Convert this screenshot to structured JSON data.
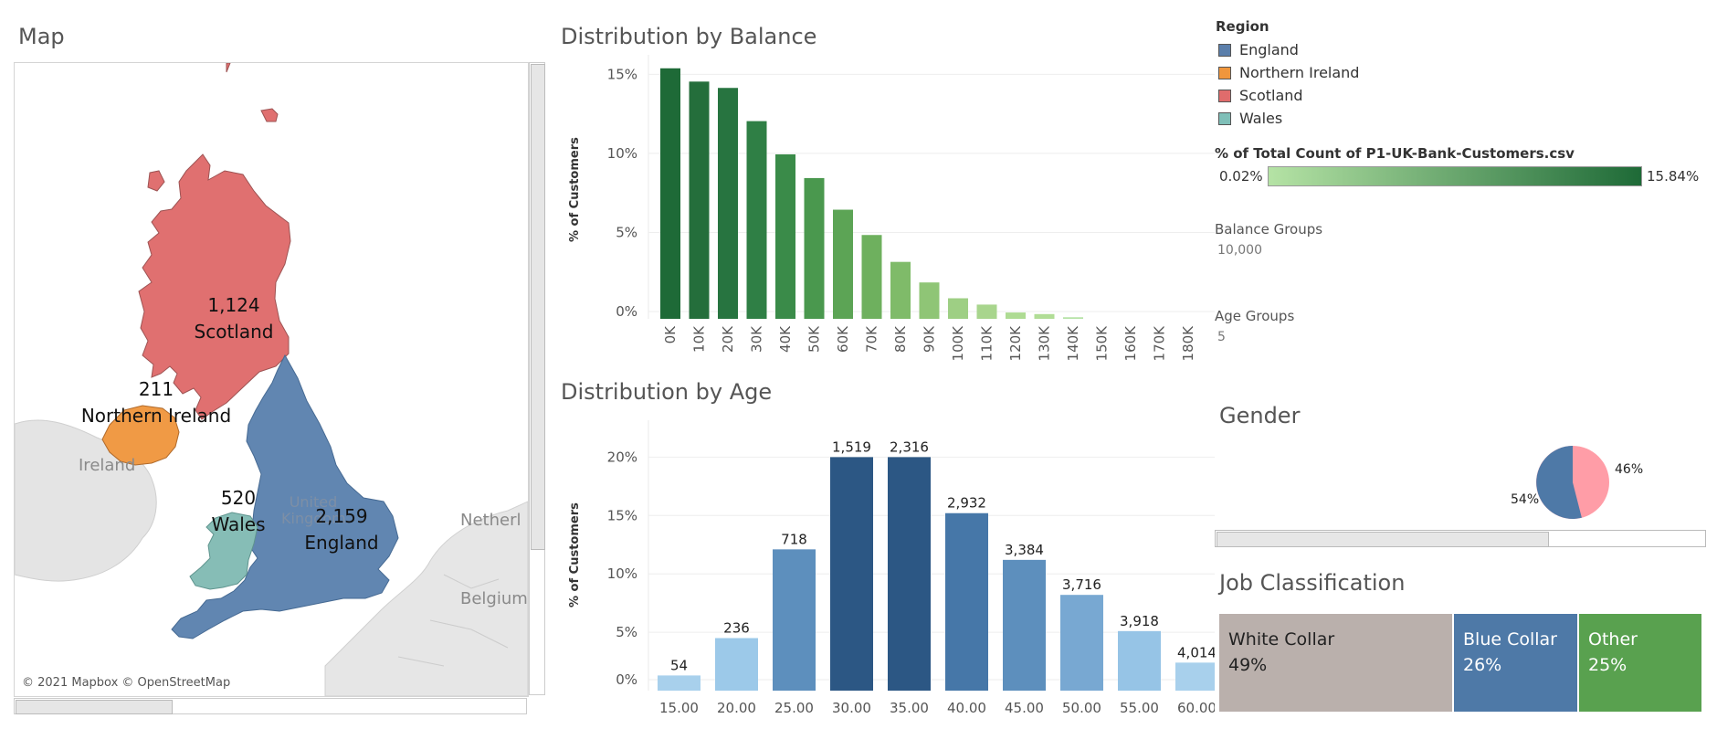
{
  "map": {
    "title": "Map",
    "attribution": "© 2021 Mapbox © OpenStreetMap",
    "countries": {
      "ireland": "Ireland",
      "uk": "United Kingdom",
      "netherlands": "Netherl",
      "belgium": "Belgium"
    },
    "regions": [
      {
        "name": "Scotland",
        "count": "1,124",
        "color": "#e07070"
      },
      {
        "name": "Northern Ireland",
        "count": "211",
        "color": "#f09a45"
      },
      {
        "name": "Wales",
        "count": "520",
        "color": "#86bdb6"
      },
      {
        "name": "England",
        "count": "2,159",
        "color": "#6186b1"
      }
    ]
  },
  "balance": {
    "title": "Distribution by Balance",
    "ylabel": "% of Customers"
  },
  "age": {
    "title": "Distribution by Age",
    "ylabel": "% of Customers"
  },
  "legend": {
    "region_title": "Region",
    "regions": [
      {
        "name": "England",
        "color": "#5b7fab"
      },
      {
        "name": "Northern Ireland",
        "color": "#f0963c"
      },
      {
        "name": "Scotland",
        "color": "#e06c6c"
      },
      {
        "name": "Wales",
        "color": "#7fbfb8"
      }
    ],
    "gradient_title": "% of Total Count of P1-UK-Bank-Customers.csv",
    "gradient_min": "0.02%",
    "gradient_max": "15.84%",
    "gradient_colors": [
      "#b5e3a5",
      "#1e6a37"
    ]
  },
  "params": {
    "balance_groups_label": "Balance Groups",
    "balance_groups_value": "10,000",
    "age_groups_label": "Age Groups",
    "age_groups_value": "5"
  },
  "gender": {
    "title": "Gender",
    "left_pct": "54%",
    "right_pct": "46%",
    "left_color": "#4e79a7",
    "right_color": "#ff9da7"
  },
  "job": {
    "title": "Job Classification",
    "items": [
      {
        "label": "White Collar",
        "pct": "49%",
        "color": "#bab0ac",
        "text_color": "#222222"
      },
      {
        "label": "Blue Collar",
        "pct": "26%",
        "color": "#4e79a7",
        "text_color": "#ffffff"
      },
      {
        "label": "Other",
        "pct": "25%",
        "color": "#59a14f",
        "text_color": "#ffffff"
      }
    ]
  },
  "chart_data": [
    {
      "type": "bar",
      "title": "Distribution by Balance",
      "ylabel": "% of Customers",
      "categories": [
        "0K",
        "10K",
        "20K",
        "30K",
        "40K",
        "50K",
        "60K",
        "70K",
        "80K",
        "90K",
        "100K",
        "110K",
        "120K",
        "130K",
        "140K",
        "150K",
        "160K",
        "170K",
        "180K"
      ],
      "values": [
        15.84,
        15.0,
        14.6,
        12.5,
        10.4,
        8.9,
        6.9,
        5.3,
        3.6,
        2.3,
        1.3,
        0.9,
        0.4,
        0.3,
        0.1,
        0,
        0,
        0,
        0
      ],
      "ylim": [
        0,
        16
      ],
      "yticks": [
        "0%",
        "5%",
        "10%",
        "15%"
      ],
      "colors": [
        "#1e6a37",
        "#246e3b",
        "#277440",
        "#2f7f45",
        "#3a8b49",
        "#4a984e",
        "#5ca455",
        "#6eb05e",
        "#7fbb69",
        "#8fc576",
        "#9ecf84",
        "#a8d58d",
        "#aedb93",
        "#b1dd96",
        "#b5e3a5",
        "#b5e3a5",
        "#b5e3a5",
        "#b5e3a5",
        "#b5e3a5"
      ],
      "grid": true
    },
    {
      "type": "bar",
      "title": "Distribution by Age",
      "ylabel": "% of Customers",
      "categories": [
        "15.00",
        "20.00",
        "25.00",
        "30.00",
        "35.00",
        "40.00",
        "45.00",
        "50.00",
        "55.00",
        "60.00"
      ],
      "values": [
        1.3,
        4.5,
        12.1,
        20.0,
        20.0,
        15.2,
        11.2,
        8.2,
        5.1,
        2.4
      ],
      "labels": [
        "54",
        "236",
        "718",
        "1,519",
        "2,316",
        "2,932",
        "3,384",
        "3,716",
        "3,918",
        "4,014"
      ],
      "ylim": [
        0,
        20.5
      ],
      "yticks": [
        "0%",
        "5%",
        "10%",
        "15%",
        "20%"
      ],
      "colors": [
        "#a8d0ec",
        "#9cc9e9",
        "#5d8fbd",
        "#2c5784",
        "#2c5784",
        "#4677a8",
        "#5d8fbd",
        "#78a8d2",
        "#96c4e6",
        "#a8d0ec"
      ],
      "grid": true
    }
  ]
}
